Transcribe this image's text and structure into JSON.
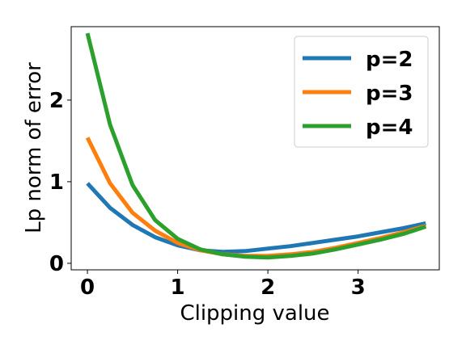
{
  "chart_data": {
    "type": "line",
    "title": "",
    "xlabel": "Clipping value",
    "ylabel": "Lp norm of error",
    "xlim": [
      -0.18,
      3.9
    ],
    "ylim": [
      -0.08,
      2.9
    ],
    "xticks": [
      "0",
      "1",
      "2",
      "3"
    ],
    "yticks": [
      "0",
      "1",
      "2"
    ],
    "grid": false,
    "legend": "top-right",
    "series": [
      {
        "name": "p=2",
        "color": "#1f77b4",
        "x": [
          0,
          0.25,
          0.5,
          0.75,
          1.0,
          1.25,
          1.5,
          1.75,
          2.0,
          2.25,
          2.5,
          2.75,
          3.0,
          3.25,
          3.5,
          3.75
        ],
        "y": [
          0.98,
          0.68,
          0.47,
          0.32,
          0.22,
          0.16,
          0.14,
          0.15,
          0.18,
          0.21,
          0.25,
          0.29,
          0.33,
          0.38,
          0.43,
          0.49
        ]
      },
      {
        "name": "p=3",
        "color": "#ff7f0e",
        "x": [
          0,
          0.25,
          0.5,
          0.75,
          1.0,
          1.25,
          1.5,
          1.75,
          2.0,
          2.25,
          2.5,
          2.75,
          3.0,
          3.25,
          3.5,
          3.75
        ],
        "y": [
          1.54,
          0.98,
          0.62,
          0.4,
          0.25,
          0.16,
          0.11,
          0.09,
          0.09,
          0.11,
          0.14,
          0.19,
          0.25,
          0.31,
          0.38,
          0.46
        ]
      },
      {
        "name": "p=4",
        "color": "#2ca02c",
        "x": [
          0,
          0.25,
          0.5,
          0.75,
          1.0,
          1.25,
          1.5,
          1.75,
          2.0,
          2.25,
          2.5,
          2.75,
          3.0,
          3.25,
          3.5,
          3.75
        ],
        "y": [
          2.82,
          1.7,
          0.96,
          0.53,
          0.3,
          0.17,
          0.11,
          0.08,
          0.07,
          0.09,
          0.12,
          0.17,
          0.23,
          0.29,
          0.36,
          0.45
        ]
      }
    ]
  }
}
